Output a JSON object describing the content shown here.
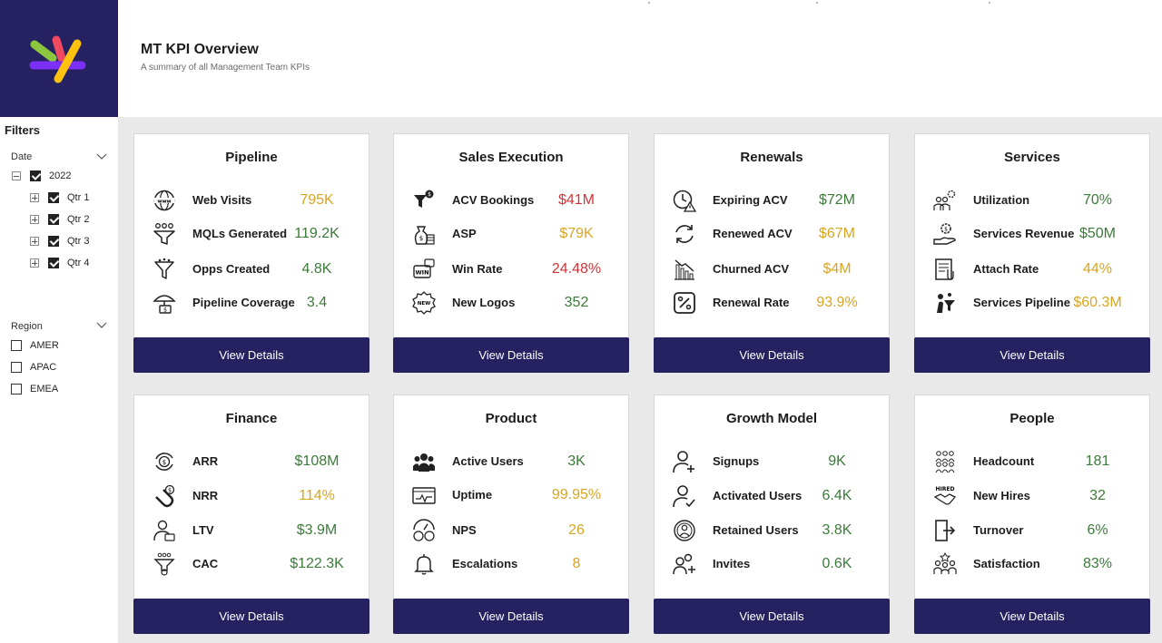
{
  "header": {
    "title": "MT KPI Overview",
    "subtitle": "A summary of all Management Team KPIs"
  },
  "colors": {
    "navy": "#262261",
    "green": "#3c7a3a",
    "yellow": "#d9a520",
    "red": "#d13438"
  },
  "filters": {
    "title": "Filters",
    "date": {
      "title": "Date",
      "year": {
        "label": "2022",
        "checked": true
      },
      "quarters": [
        {
          "label": "Qtr 1",
          "checked": true
        },
        {
          "label": "Qtr 2",
          "checked": true
        },
        {
          "label": "Qtr 3",
          "checked": true
        },
        {
          "label": "Qtr 4",
          "checked": true
        }
      ]
    },
    "region": {
      "title": "Region",
      "options": [
        {
          "label": "AMER",
          "checked": false
        },
        {
          "label": "APAC",
          "checked": false
        },
        {
          "label": "EMEA",
          "checked": false
        }
      ]
    }
  },
  "cards": [
    {
      "title": "Pipeline",
      "button": "View Details",
      "kpis": [
        {
          "label": "Web Visits",
          "value": "795K",
          "color": "yellow",
          "icon": "globe-www-icon"
        },
        {
          "label": "MQLs Generated",
          "value": "119.2K",
          "color": "green",
          "icon": "people-funnel-icon"
        },
        {
          "label": "Opps Created",
          "value": "4.8K",
          "color": "green",
          "icon": "funnel-icon"
        },
        {
          "label": "Pipeline Coverage",
          "value": "3.4",
          "color": "green",
          "icon": "umbrella-money-icon"
        }
      ]
    },
    {
      "title": "Sales Execution",
      "button": "View Details",
      "kpis": [
        {
          "label": "ACV Bookings",
          "value": "$41M",
          "color": "red",
          "icon": "funnel-dollar-icon"
        },
        {
          "label": "ASP",
          "value": "$79K",
          "color": "yellow",
          "icon": "money-bag-icon"
        },
        {
          "label": "Win Rate",
          "value": "24.48%",
          "color": "red",
          "icon": "win-icon"
        },
        {
          "label": "New Logos",
          "value": "352",
          "color": "green",
          "icon": "new-badge-icon"
        }
      ]
    },
    {
      "title": "Renewals",
      "button": "View Details",
      "kpis": [
        {
          "label": "Expiring ACV",
          "value": "$72M",
          "color": "green",
          "icon": "clock-warning-icon"
        },
        {
          "label": "Renewed ACV",
          "value": "$67M",
          "color": "yellow",
          "icon": "refresh-icon"
        },
        {
          "label": "Churned ACV",
          "value": "$4M",
          "color": "yellow",
          "icon": "declining-chart-icon"
        },
        {
          "label": "Renewal Rate",
          "value": "93.9%",
          "color": "yellow",
          "icon": "percent-icon"
        }
      ]
    },
    {
      "title": "Services",
      "button": "View Details",
      "kpis": [
        {
          "label": "Utilization",
          "value": "70%",
          "color": "green",
          "icon": "team-gear-icon"
        },
        {
          "label": "Services Revenue",
          "value": "$50M",
          "color": "green",
          "icon": "hand-coin-icon"
        },
        {
          "label": "Attach Rate",
          "value": "44%",
          "color": "yellow",
          "icon": "document-attach-icon"
        },
        {
          "label": "Services Pipeline",
          "value": "$60.3M",
          "color": "yellow",
          "icon": "person-funnel-icon"
        }
      ]
    },
    {
      "title": "Finance",
      "button": "View Details",
      "kpis": [
        {
          "label": "ARR",
          "value": "$108M",
          "color": "green",
          "icon": "recurring-dollar-icon"
        },
        {
          "label": "NRR",
          "value": "114%",
          "color": "yellow",
          "icon": "magnet-dollar-icon"
        },
        {
          "label": "LTV",
          "value": "$3.9M",
          "color": "green",
          "icon": "customer-value-icon"
        },
        {
          "label": "CAC",
          "value": "$122.3K",
          "color": "green",
          "icon": "acquisition-funnel-icon"
        }
      ]
    },
    {
      "title": "Product",
      "button": "View Details",
      "kpis": [
        {
          "label": "Active Users",
          "value": "3K",
          "color": "green",
          "icon": "users-group-icon"
        },
        {
          "label": "Uptime",
          "value": "99.95%",
          "color": "yellow",
          "icon": "monitor-pulse-icon"
        },
        {
          "label": "NPS",
          "value": "26",
          "color": "yellow",
          "icon": "smiley-faces-icon"
        },
        {
          "label": "Escalations",
          "value": "8",
          "color": "yellow",
          "icon": "bell-icon"
        }
      ]
    },
    {
      "title": "Growth Model",
      "button": "View Details",
      "kpis": [
        {
          "label": "Signups",
          "value": "9K",
          "color": "green",
          "icon": "add-user-icon"
        },
        {
          "label": "Activated Users",
          "value": "6.4K",
          "color": "green",
          "icon": "user-check-icon"
        },
        {
          "label": "Retained Users",
          "value": "3.8K",
          "color": "green",
          "icon": "user-retained-icon"
        },
        {
          "label": "Invites",
          "value": "0.6K",
          "color": "green",
          "icon": "invite-users-icon"
        }
      ]
    },
    {
      "title": "People",
      "button": "View Details",
      "kpis": [
        {
          "label": "Headcount",
          "value": "181",
          "color": "green",
          "icon": "people-count-icon"
        },
        {
          "label": "New Hires",
          "value": "32",
          "color": "green",
          "icon": "hired-handshake-icon"
        },
        {
          "label": "Turnover",
          "value": "6%",
          "color": "green",
          "icon": "exit-door-icon"
        },
        {
          "label": "Satisfaction",
          "value": "83%",
          "color": "green",
          "icon": "happy-team-icon"
        }
      ]
    }
  ]
}
